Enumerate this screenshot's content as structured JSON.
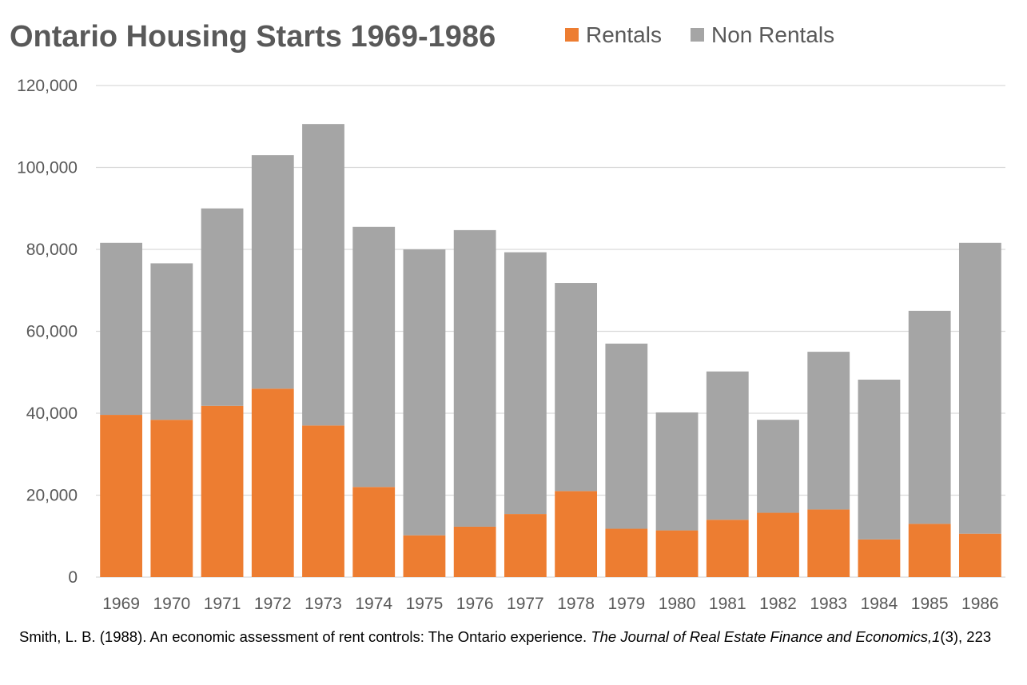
{
  "chart_data": {
    "type": "bar",
    "stacked": true,
    "title": "Ontario Housing Starts 1969-1986",
    "xlabel": "",
    "ylabel": "",
    "categories": [
      "1969",
      "1970",
      "1971",
      "1972",
      "1973",
      "1974",
      "1975",
      "1976",
      "1977",
      "1978",
      "1979",
      "1980",
      "1981",
      "1982",
      "1983",
      "1984",
      "1985",
      "1986"
    ],
    "series": [
      {
        "name": "Rentals",
        "color": "#ed7d31",
        "values": [
          39600,
          38400,
          41800,
          46000,
          37000,
          22000,
          10200,
          12300,
          15400,
          21000,
          11800,
          11400,
          14000,
          15700,
          16500,
          9200,
          13000,
          10600
        ]
      },
      {
        "name": "Non Rentals",
        "color": "#a5a5a5",
        "values": [
          42000,
          38200,
          48200,
          57000,
          73600,
          63500,
          69800,
          72400,
          63900,
          50800,
          45200,
          28800,
          36200,
          22700,
          38500,
          39000,
          52000,
          71000
        ]
      }
    ],
    "ylim": [
      0,
      120000
    ],
    "yticks": [
      0,
      20000,
      40000,
      60000,
      80000,
      100000,
      120000
    ],
    "ytick_labels": [
      "0",
      "20,000",
      "40,000",
      "60,000",
      "80,000",
      "100,000",
      "120,000"
    ],
    "grid": true,
    "legend_position": "top-right"
  },
  "citation": {
    "plain": "Smith, L. B. (1988). An economic assessment of rent controls: The Ontario experience. ",
    "journal": "The Journal of Real Estate Finance and Economics,",
    "volume": "1",
    "rest": "(3), 223"
  }
}
